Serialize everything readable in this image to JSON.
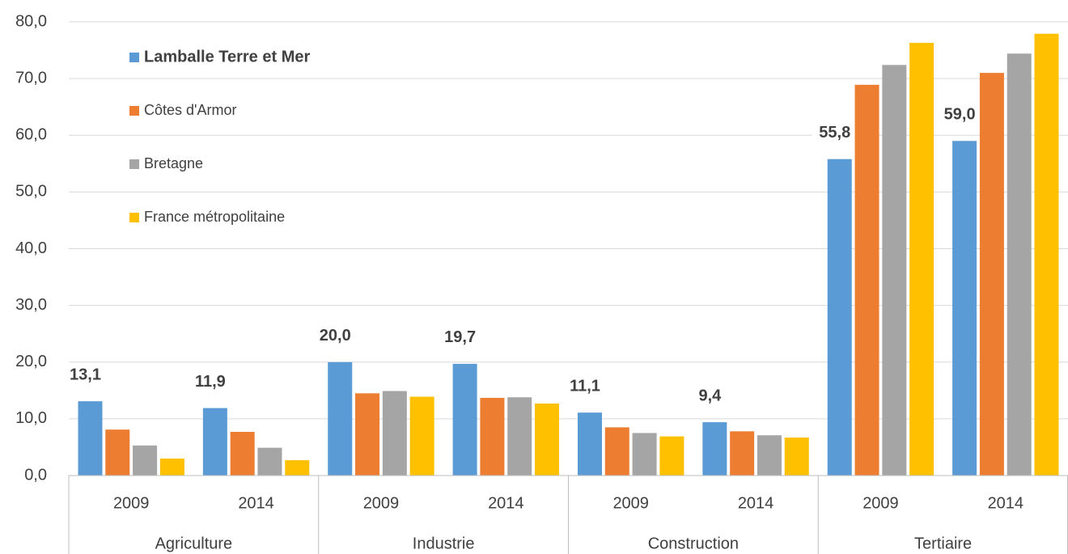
{
  "chart_data": {
    "type": "bar",
    "categories": [
      "2009",
      "2014",
      "2009",
      "2014",
      "2009",
      "2014",
      "2009",
      "2014"
    ],
    "groups": [
      "Agriculture",
      "Industrie",
      "Construction",
      "Tertiaire"
    ],
    "series": [
      {
        "name": "Lamballe Terre et Mer",
        "color": "#5b9bd5",
        "values": [
          13.1,
          11.9,
          20.0,
          19.7,
          11.1,
          9.4,
          55.8,
          59.0
        ],
        "value_labels": [
          "13,1",
          "11,9",
          "20,0",
          "19,7",
          "11,1",
          "9,4",
          "55,8",
          "59,0"
        ]
      },
      {
        "name": "Côtes d'Armor",
        "color": "#ed7d31",
        "values": [
          8.1,
          7.7,
          14.5,
          13.7,
          8.5,
          7.8,
          68.9,
          71.0
        ]
      },
      {
        "name": "Bretagne",
        "color": "#a5a5a5",
        "values": [
          5.3,
          4.9,
          14.9,
          13.8,
          7.5,
          7.1,
          72.4,
          74.4
        ]
      },
      {
        "name": "France métropolitaine",
        "color": "#ffc000",
        "values": [
          3.0,
          2.7,
          13.9,
          12.7,
          6.9,
          6.7,
          76.3,
          77.9
        ]
      }
    ],
    "ylim": [
      0,
      80
    ],
    "yticks": [
      {
        "value": 0,
        "label": "0,0"
      },
      {
        "value": 10,
        "label": "10,0"
      },
      {
        "value": 20,
        "label": "20,0"
      },
      {
        "value": 30,
        "label": "30,0"
      },
      {
        "value": 40,
        "label": "40,0"
      },
      {
        "value": 50,
        "label": "50,0"
      },
      {
        "value": 60,
        "label": "60,0"
      },
      {
        "value": 70,
        "label": "70,0"
      },
      {
        "value": 80,
        "label": "80,0"
      }
    ],
    "grid": true,
    "legend": "upper left"
  }
}
